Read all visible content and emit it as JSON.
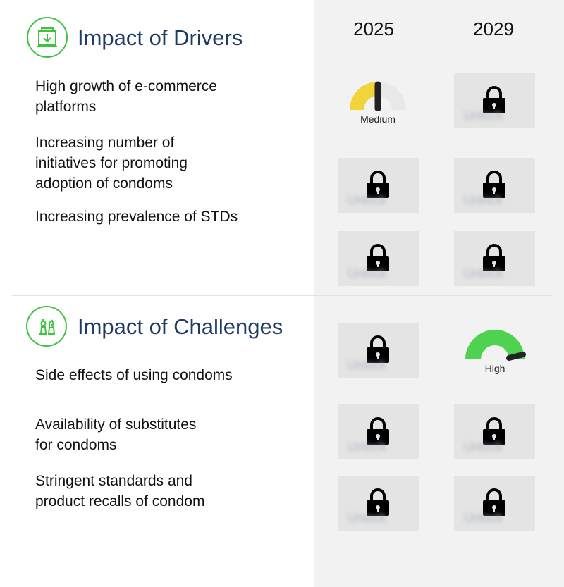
{
  "drivers": {
    "title": "Impact of Drivers",
    "items": [
      {
        "label": "High growth of e-commerce\nplatforms"
      },
      {
        "label": "Increasing number of\ninitiatives for promoting\nadoption of condoms"
      },
      {
        "label": "Increasing prevalence of STDs"
      }
    ]
  },
  "challenges": {
    "title": "Impact of Challenges",
    "items": [
      {
        "label": "Side effects of using condoms"
      },
      {
        "label": "Availability of substitutes\nfor condoms"
      },
      {
        "label": "Stringent standards and\nproduct recalls of condom"
      }
    ]
  },
  "years": [
    "2025",
    "2029"
  ],
  "gauges": {
    "medium": {
      "label": "Medium",
      "level": 0.5,
      "color": "#f0d43a"
    },
    "high": {
      "label": "High",
      "level": 1.0,
      "color": "#4fd24f"
    }
  },
  "locked_text": "Unlock",
  "colors": {
    "accent": "#3cc43f",
    "title": "#1f3a63",
    "panel": "#f2f2f2"
  }
}
